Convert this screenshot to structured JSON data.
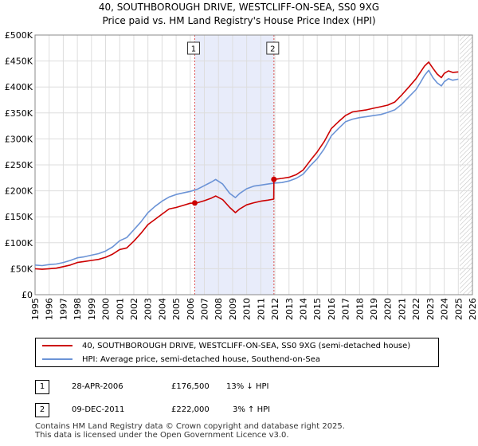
{
  "chart_data": {
    "type": "line",
    "title": "40, SOUTHBOROUGH DRIVE, WESTCLIFF-ON-SEA, SS0 9XG",
    "subtitle": "Price paid vs. HM Land Registry's House Price Index (HPI)",
    "xlim": [
      1995,
      2026
    ],
    "ylim": [
      0,
      500000
    ],
    "x_ticks": [
      "1995",
      "1996",
      "1997",
      "1998",
      "1999",
      "2000",
      "2001",
      "2002",
      "2003",
      "2004",
      "2005",
      "2006",
      "2007",
      "2008",
      "2009",
      "2010",
      "2011",
      "2012",
      "2013",
      "2014",
      "2015",
      "2016",
      "2017",
      "2018",
      "2019",
      "2020",
      "2021",
      "2022",
      "2023",
      "2024",
      "2025",
      "2026"
    ],
    "y_ticks": [
      {
        "value": 0,
        "label": "£0"
      },
      {
        "value": 50000,
        "label": "£50K"
      },
      {
        "value": 100000,
        "label": "£100K"
      },
      {
        "value": 150000,
        "label": "£150K"
      },
      {
        "value": 200000,
        "label": "£200K"
      },
      {
        "value": 250000,
        "label": "£250K"
      },
      {
        "value": 300000,
        "label": "£300K"
      },
      {
        "value": 350000,
        "label": "£350K"
      },
      {
        "value": 400000,
        "label": "£400K"
      },
      {
        "value": 450000,
        "label": "£450K"
      },
      {
        "value": 500000,
        "label": "£500K"
      }
    ],
    "grid": true,
    "shaded_period": [
      2006.32,
      2011.93
    ],
    "forecast_from": 2025.1,
    "series": [
      {
        "name": "40, SOUTHBOROUGH DRIVE, WESTCLIFF-ON-SEA, SS0 9XG (semi-detached house)",
        "color": "#cc0000",
        "x": [
          1995.0,
          1995.5,
          1996.0,
          1996.5,
          1997.0,
          1997.5,
          1998.0,
          1998.5,
          1999.0,
          1999.5,
          2000.0,
          2000.5,
          2001.0,
          2001.5,
          2002.0,
          2002.5,
          2003.0,
          2003.5,
          2004.0,
          2004.5,
          2005.0,
          2005.5,
          2006.0,
          2006.32,
          2006.5,
          2007.0,
          2007.5,
          2007.8,
          2008.3,
          2008.8,
          2009.2,
          2009.5,
          2010.0,
          2010.5,
          2011.0,
          2011.5,
          2011.92,
          2011.93,
          2012.5,
          2013.0,
          2013.5,
          2014.0,
          2014.5,
          2015.0,
          2015.5,
          2016.0,
          2016.5,
          2017.0,
          2017.5,
          2018.0,
          2018.5,
          2019.0,
          2019.5,
          2020.0,
          2020.5,
          2021.0,
          2021.5,
          2022.0,
          2022.3,
          2022.6,
          2022.9,
          2023.2,
          2023.5,
          2023.8,
          2024.0,
          2024.3,
          2024.6,
          2025.0
        ],
        "values": [
          50000,
          49000,
          50000,
          51000,
          54000,
          57000,
          62000,
          64000,
          66000,
          68000,
          72000,
          78000,
          87000,
          90000,
          103000,
          118000,
          135000,
          145000,
          155000,
          165000,
          168000,
          172000,
          176000,
          176500,
          177000,
          181000,
          186000,
          190000,
          183000,
          168000,
          158000,
          165000,
          173000,
          177000,
          180000,
          182000,
          184000,
          222000,
          224000,
          226000,
          231000,
          240000,
          258000,
          275000,
          295000,
          320000,
          333000,
          345000,
          352000,
          354000,
          356000,
          359000,
          362000,
          365000,
          371000,
          385000,
          400000,
          416000,
          428000,
          440000,
          448000,
          436000,
          425000,
          418000,
          426000,
          431000,
          428000,
          429000
        ]
      },
      {
        "name": "HPI: Average price, semi-detached house, Southend-on-Sea",
        "color": "#6b93d6",
        "x": [
          1995.0,
          1995.5,
          1996.0,
          1996.5,
          1997.0,
          1997.5,
          1998.0,
          1998.5,
          1999.0,
          1999.5,
          2000.0,
          2000.5,
          2001.0,
          2001.5,
          2002.0,
          2002.5,
          2003.0,
          2003.5,
          2004.0,
          2004.5,
          2005.0,
          2005.5,
          2006.0,
          2006.5,
          2007.0,
          2007.5,
          2007.8,
          2008.3,
          2008.8,
          2009.2,
          2009.5,
          2010.0,
          2010.5,
          2011.0,
          2011.5,
          2012.0,
          2012.5,
          2013.0,
          2013.5,
          2014.0,
          2014.5,
          2015.0,
          2015.5,
          2016.0,
          2016.5,
          2017.0,
          2017.5,
          2018.0,
          2018.5,
          2019.0,
          2019.5,
          2020.0,
          2020.5,
          2021.0,
          2021.5,
          2022.0,
          2022.3,
          2022.6,
          2022.9,
          2023.2,
          2023.5,
          2023.8,
          2024.0,
          2024.3,
          2024.6,
          2025.0
        ],
        "values": [
          57000,
          56000,
          58000,
          59000,
          62000,
          66000,
          71000,
          73000,
          76000,
          79000,
          84000,
          92000,
          104000,
          110000,
          125000,
          140000,
          158000,
          170000,
          180000,
          188000,
          193000,
          196000,
          199000,
          203000,
          210000,
          217000,
          222000,
          213000,
          195000,
          187000,
          195000,
          204000,
          209000,
          211000,
          213000,
          215000,
          216000,
          219000,
          224000,
          232000,
          248000,
          262000,
          281000,
          306000,
          320000,
          333000,
          338000,
          341000,
          343000,
          345000,
          347000,
          351000,
          356000,
          367000,
          381000,
          395000,
          408000,
          422000,
          432000,
          418000,
          408000,
          402000,
          410000,
          416000,
          413000,
          415000
        ]
      }
    ],
    "markers": [
      {
        "label": "1",
        "x": 2006.32,
        "y": 176500
      },
      {
        "label": "2",
        "x": 2011.93,
        "y": 222000
      }
    ]
  },
  "transactions": [
    {
      "num": "1",
      "date": "28-APR-2006",
      "price": "£176,500",
      "hpi_diff": "13% ↓ HPI"
    },
    {
      "num": "2",
      "date": "09-DEC-2011",
      "price": "£222,000",
      "hpi_diff": "3% ↑ HPI"
    }
  ],
  "footer": {
    "line1": "Contains HM Land Registry data © Crown copyright and database right 2025.",
    "line2": "This data is licensed under the Open Government Licence v3.0."
  }
}
